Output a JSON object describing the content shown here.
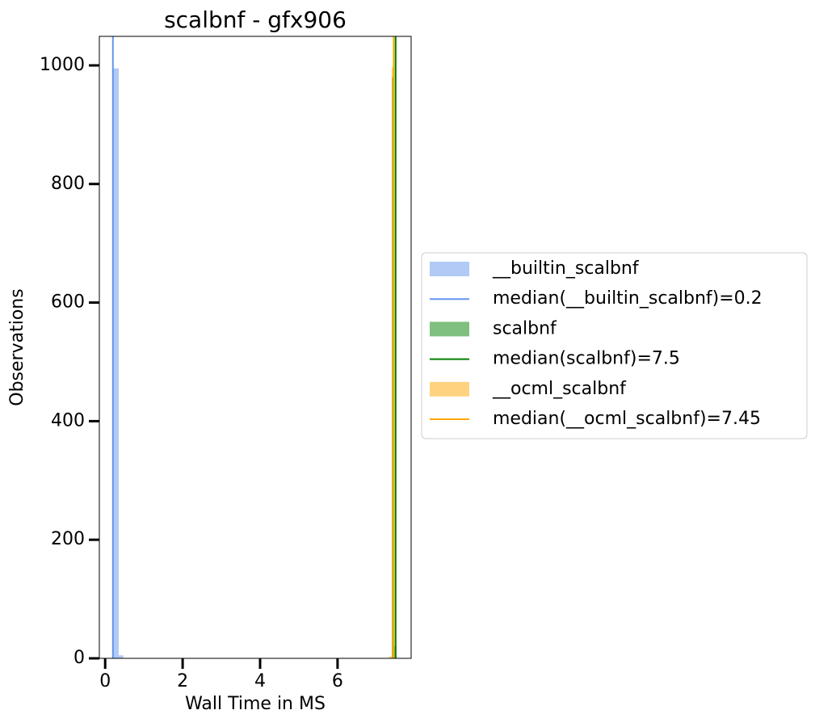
{
  "chart_data": {
    "type": "histogram",
    "title": "scalbnf - gfx906",
    "xlabel": "Wall Time in MS",
    "ylabel": "Observations",
    "xlim": [
      -0.15,
      7.9
    ],
    "ylim": [
      0,
      1049
    ],
    "xticks": [
      0,
      2,
      4,
      6
    ],
    "yticks": [
      0,
      200,
      400,
      600,
      800,
      1000
    ],
    "legend": "right",
    "series": [
      {
        "name": "__builtin_scalbnf",
        "color": "#6495ed",
        "bins": [
          0.21,
          0.35,
          0.47
        ],
        "values": [
          995,
          5
        ]
      },
      {
        "name": "scalbnf",
        "color": "#008000",
        "bins": [
          7.4,
          7.46,
          7.52
        ],
        "values": [
          980,
          20
        ]
      },
      {
        "name": "__ocml_scalbnf",
        "color": "#ffa500",
        "bins": [
          7.32,
          7.4,
          7.46
        ],
        "values": [
          3,
          997
        ]
      }
    ],
    "medians": [
      {
        "name": "median(__builtin_scalbnf)=0.2",
        "value": 0.2,
        "color": "#6495ed"
      },
      {
        "name": "median(scalbnf)=7.5",
        "value": 7.5,
        "color": "#008000"
      },
      {
        "name": "median(__ocml_scalbnf)=7.45",
        "value": 7.45,
        "color": "#ffa500"
      }
    ]
  }
}
